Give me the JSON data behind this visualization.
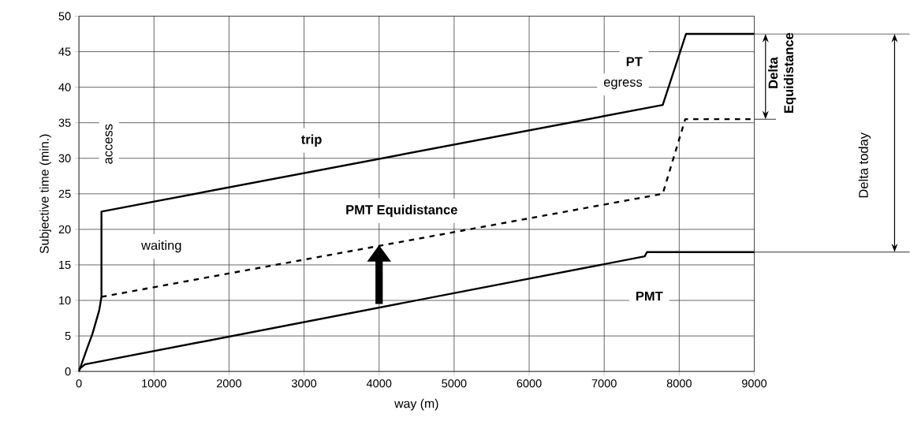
{
  "chart_data": {
    "type": "line",
    "xlabel": "way (m)",
    "ylabel": "Subjective time (min.)",
    "series": [
      {
        "name": "PT",
        "color": "#000000",
        "line_style": "solid",
        "x": [
          0,
          100,
          180,
          270,
          300,
          300,
          7780,
          8090,
          9000
        ],
        "values": [
          0,
          3,
          5.3,
          8.6,
          10.5,
          22.5,
          37.5,
          47.5,
          47.5
        ]
      },
      {
        "name": "PMT Equidistance",
        "color": "#000000",
        "line_style": "dashed",
        "x": [
          300,
          7780,
          8080,
          9000
        ],
        "values": [
          10.5,
          25,
          35.5,
          35.5
        ]
      },
      {
        "name": "PMT",
        "color": "#000000",
        "line_style": "solid",
        "x": [
          0,
          80,
          7540,
          7570,
          9000
        ],
        "values": [
          0.3,
          1,
          16.2,
          16.8,
          16.8
        ]
      }
    ],
    "xlim": [
      0,
      9000
    ],
    "ylim": [
      0,
      50
    ],
    "xticks": [
      0,
      1000,
      2000,
      3000,
      4000,
      5000,
      6000,
      7000,
      8000,
      9000
    ],
    "yticks": [
      0,
      5,
      10,
      15,
      20,
      25,
      30,
      35,
      40,
      45,
      50
    ],
    "grid": true,
    "marker": "none",
    "annotations": [
      "access",
      "trip",
      "egress",
      "waiting",
      "Delta Equidistance",
      "Delta today"
    ]
  }
}
